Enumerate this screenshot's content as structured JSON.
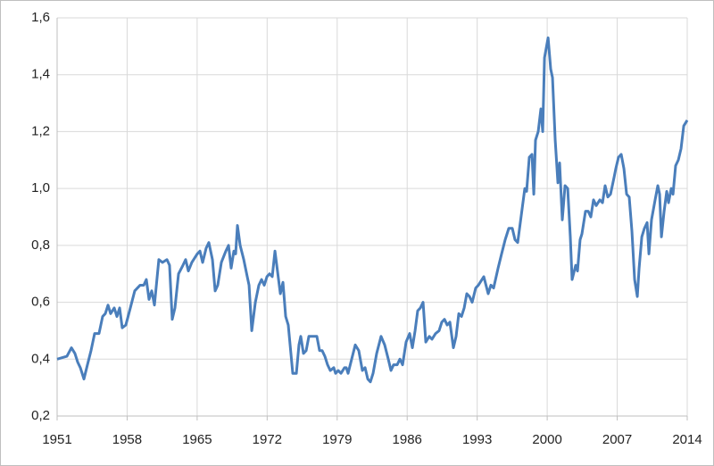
{
  "chart_data": {
    "type": "line",
    "grid": true,
    "xlim": [
      1951,
      2014
    ],
    "xticks": [
      1951,
      1958,
      1965,
      1972,
      1979,
      1986,
      1993,
      2000,
      2007,
      2014
    ],
    "ylim": [
      0.2,
      1.6
    ],
    "yticks": [
      {
        "value": 0.2,
        "label": "0,2"
      },
      {
        "value": 0.4,
        "label": "0,4"
      },
      {
        "value": 0.6,
        "label": "0,6"
      },
      {
        "value": 0.8,
        "label": "0,8"
      },
      {
        "value": 1.0,
        "label": "1,0"
      },
      {
        "value": 1.2,
        "label": "1,2"
      },
      {
        "value": 1.4,
        "label": "1,4"
      },
      {
        "value": 1.6,
        "label": "1,6"
      }
    ],
    "x": [
      1951.0,
      1951.98,
      1952.43,
      1952.78,
      1953.05,
      1953.32,
      1953.68,
      1954.03,
      1954.39,
      1954.75,
      1955.19,
      1955.55,
      1955.82,
      1956.09,
      1956.35,
      1956.71,
      1956.98,
      1957.25,
      1957.51,
      1957.87,
      1958.32,
      1958.76,
      1959.3,
      1959.66,
      1959.92,
      1960.19,
      1960.46,
      1960.73,
      1961.17,
      1961.53,
      1961.98,
      1962.24,
      1962.51,
      1962.78,
      1963.14,
      1963.58,
      1963.85,
      1964.12,
      1964.47,
      1965.01,
      1965.28,
      1965.55,
      1965.9,
      1966.17,
      1966.53,
      1966.8,
      1967.06,
      1967.42,
      1967.87,
      1968.14,
      1968.4,
      1968.67,
      1968.85,
      1969.03,
      1969.3,
      1969.66,
      1970.01,
      1970.19,
      1970.46,
      1970.82,
      1971.17,
      1971.44,
      1971.71,
      1971.98,
      1972.24,
      1972.51,
      1972.78,
      1973.32,
      1973.58,
      1973.85,
      1974.11,
      1974.56,
      1974.92,
      1975.18,
      1975.36,
      1975.63,
      1975.9,
      1976.17,
      1976.7,
      1976.97,
      1977.24,
      1977.5,
      1977.77,
      1978.04,
      1978.31,
      1978.66,
      1978.84,
      1979.11,
      1979.38,
      1979.74,
      1979.91,
      1980.09,
      1980.45,
      1980.81,
      1981.16,
      1981.52,
      1981.79,
      1982.06,
      1982.32,
      1982.59,
      1982.95,
      1983.39,
      1983.75,
      1984.11,
      1984.38,
      1984.64,
      1985.0,
      1985.27,
      1985.54,
      1985.89,
      1986.25,
      1986.52,
      1986.79,
      1987.05,
      1987.32,
      1987.59,
      1987.86,
      1988.21,
      1988.48,
      1988.84,
      1989.19,
      1989.46,
      1989.73,
      1990.0,
      1990.27,
      1990.62,
      1990.89,
      1991.16,
      1991.43,
      1991.7,
      1991.96,
      1992.23,
      1992.5,
      1992.85,
      1993.12,
      1993.66,
      1994.1,
      1994.37,
      1994.64,
      1995.09,
      1995.44,
      1995.8,
      1996.16,
      1996.51,
      1996.78,
      1997.05,
      1997.76,
      1997.94,
      1998.21,
      1998.48,
      1998.66,
      1998.83,
      1999.1,
      1999.37,
      1999.55,
      1999.73,
      2000.09,
      2000.35,
      2000.53,
      2000.8,
      2001.07,
      2001.24,
      2001.51,
      2001.78,
      2002.05,
      2002.31,
      2002.49,
      2002.85,
      2003.03,
      2003.29,
      2003.47,
      2003.83,
      2004.1,
      2004.36,
      2004.63,
      2004.9,
      2005.26,
      2005.53,
      2005.79,
      2006.06,
      2006.33,
      2006.69,
      2006.86,
      2007.13,
      2007.4,
      2007.67,
      2007.94,
      2008.2,
      2008.47,
      2008.74,
      2009.01,
      2009.19,
      2009.46,
      2009.72,
      2009.99,
      2010.17,
      2010.43,
      2010.79,
      2011.06,
      2011.24,
      2011.42,
      2011.69,
      2011.95,
      2012.13,
      2012.4,
      2012.58,
      2012.84,
      2013.11,
      2013.38,
      2013.65,
      2014.0
    ],
    "series": [
      {
        "color": "#4a7ebb",
        "values": [
          0.4,
          0.41,
          0.44,
          0.42,
          0.39,
          0.37,
          0.33,
          0.38,
          0.43,
          0.49,
          0.49,
          0.55,
          0.56,
          0.59,
          0.56,
          0.58,
          0.55,
          0.58,
          0.51,
          0.52,
          0.58,
          0.64,
          0.66,
          0.66,
          0.68,
          0.61,
          0.64,
          0.59,
          0.75,
          0.74,
          0.75,
          0.73,
          0.54,
          0.58,
          0.7,
          0.73,
          0.75,
          0.71,
          0.74,
          0.77,
          0.78,
          0.74,
          0.79,
          0.81,
          0.75,
          0.64,
          0.66,
          0.74,
          0.78,
          0.8,
          0.72,
          0.78,
          0.77,
          0.87,
          0.8,
          0.75,
          0.69,
          0.66,
          0.5,
          0.6,
          0.66,
          0.68,
          0.66,
          0.69,
          0.7,
          0.69,
          0.78,
          0.63,
          0.67,
          0.55,
          0.52,
          0.35,
          0.35,
          0.45,
          0.48,
          0.42,
          0.43,
          0.48,
          0.48,
          0.48,
          0.43,
          0.43,
          0.41,
          0.38,
          0.36,
          0.37,
          0.35,
          0.36,
          0.35,
          0.37,
          0.37,
          0.35,
          0.4,
          0.45,
          0.43,
          0.36,
          0.37,
          0.33,
          0.32,
          0.35,
          0.42,
          0.48,
          0.45,
          0.4,
          0.36,
          0.38,
          0.38,
          0.4,
          0.38,
          0.46,
          0.49,
          0.44,
          0.5,
          0.57,
          0.58,
          0.6,
          0.46,
          0.48,
          0.47,
          0.49,
          0.5,
          0.53,
          0.54,
          0.52,
          0.53,
          0.44,
          0.48,
          0.56,
          0.55,
          0.58,
          0.63,
          0.62,
          0.6,
          0.65,
          0.66,
          0.69,
          0.63,
          0.66,
          0.65,
          0.72,
          0.77,
          0.82,
          0.86,
          0.86,
          0.82,
          0.81,
          1.0,
          0.99,
          1.11,
          1.12,
          0.98,
          1.17,
          1.2,
          1.28,
          1.2,
          1.46,
          1.53,
          1.42,
          1.39,
          1.17,
          1.02,
          1.09,
          0.89,
          1.01,
          1.0,
          0.83,
          0.68,
          0.73,
          0.71,
          0.82,
          0.84,
          0.92,
          0.92,
          0.9,
          0.96,
          0.94,
          0.96,
          0.95,
          1.01,
          0.97,
          0.98,
          1.04,
          1.07,
          1.11,
          1.12,
          1.07,
          0.98,
          0.97,
          0.85,
          0.68,
          0.62,
          0.72,
          0.83,
          0.86,
          0.88,
          0.77,
          0.89,
          0.96,
          1.01,
          0.98,
          0.83,
          0.92,
          0.99,
          0.95,
          1.0,
          0.98,
          1.08,
          1.1,
          1.14,
          1.22,
          1.24
        ]
      }
    ]
  }
}
